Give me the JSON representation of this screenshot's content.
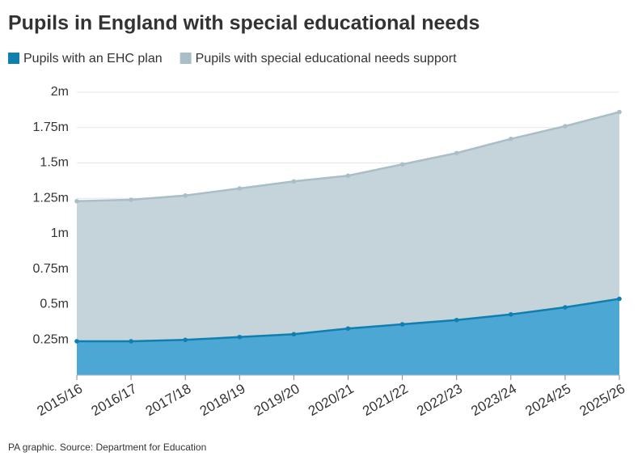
{
  "chart_data": {
    "type": "stacked-area",
    "title": "Pupils in England with special educational needs",
    "source": "PA graphic. Source: Department for Education",
    "categories": [
      "2015/16",
      "2016/17",
      "2017/18",
      "2018/19",
      "2019/20",
      "2020/21",
      "2021/22",
      "2022/23",
      "2023/24",
      "2024/25",
      "2025/26"
    ],
    "series": [
      {
        "name": "Pupils with an EHC plan",
        "color": "#0f7fb0",
        "fill": "#4ca7d4",
        "values": [
          0.24,
          0.24,
          0.25,
          0.27,
          0.29,
          0.33,
          0.36,
          0.39,
          0.43,
          0.48,
          0.54
        ]
      },
      {
        "name": "Pupils with special educational needs support",
        "color": "#a9bec7",
        "fill": "#c5d4db",
        "values": [
          0.99,
          1.0,
          1.02,
          1.05,
          1.08,
          1.08,
          1.13,
          1.18,
          1.24,
          1.28,
          1.32
        ]
      }
    ],
    "ylim": [
      0,
      2
    ],
    "yticks": [
      {
        "value": 0.25,
        "label": "0.25m"
      },
      {
        "value": 0.5,
        "label": "0.5m"
      },
      {
        "value": 0.75,
        "label": "0.75m"
      },
      {
        "value": 1,
        "label": "1m"
      },
      {
        "value": 1.25,
        "label": "1.25m"
      },
      {
        "value": 1.5,
        "label": "1.5m"
      },
      {
        "value": 1.75,
        "label": "1.75m"
      },
      {
        "value": 2,
        "label": "2m"
      }
    ],
    "grid": true
  }
}
